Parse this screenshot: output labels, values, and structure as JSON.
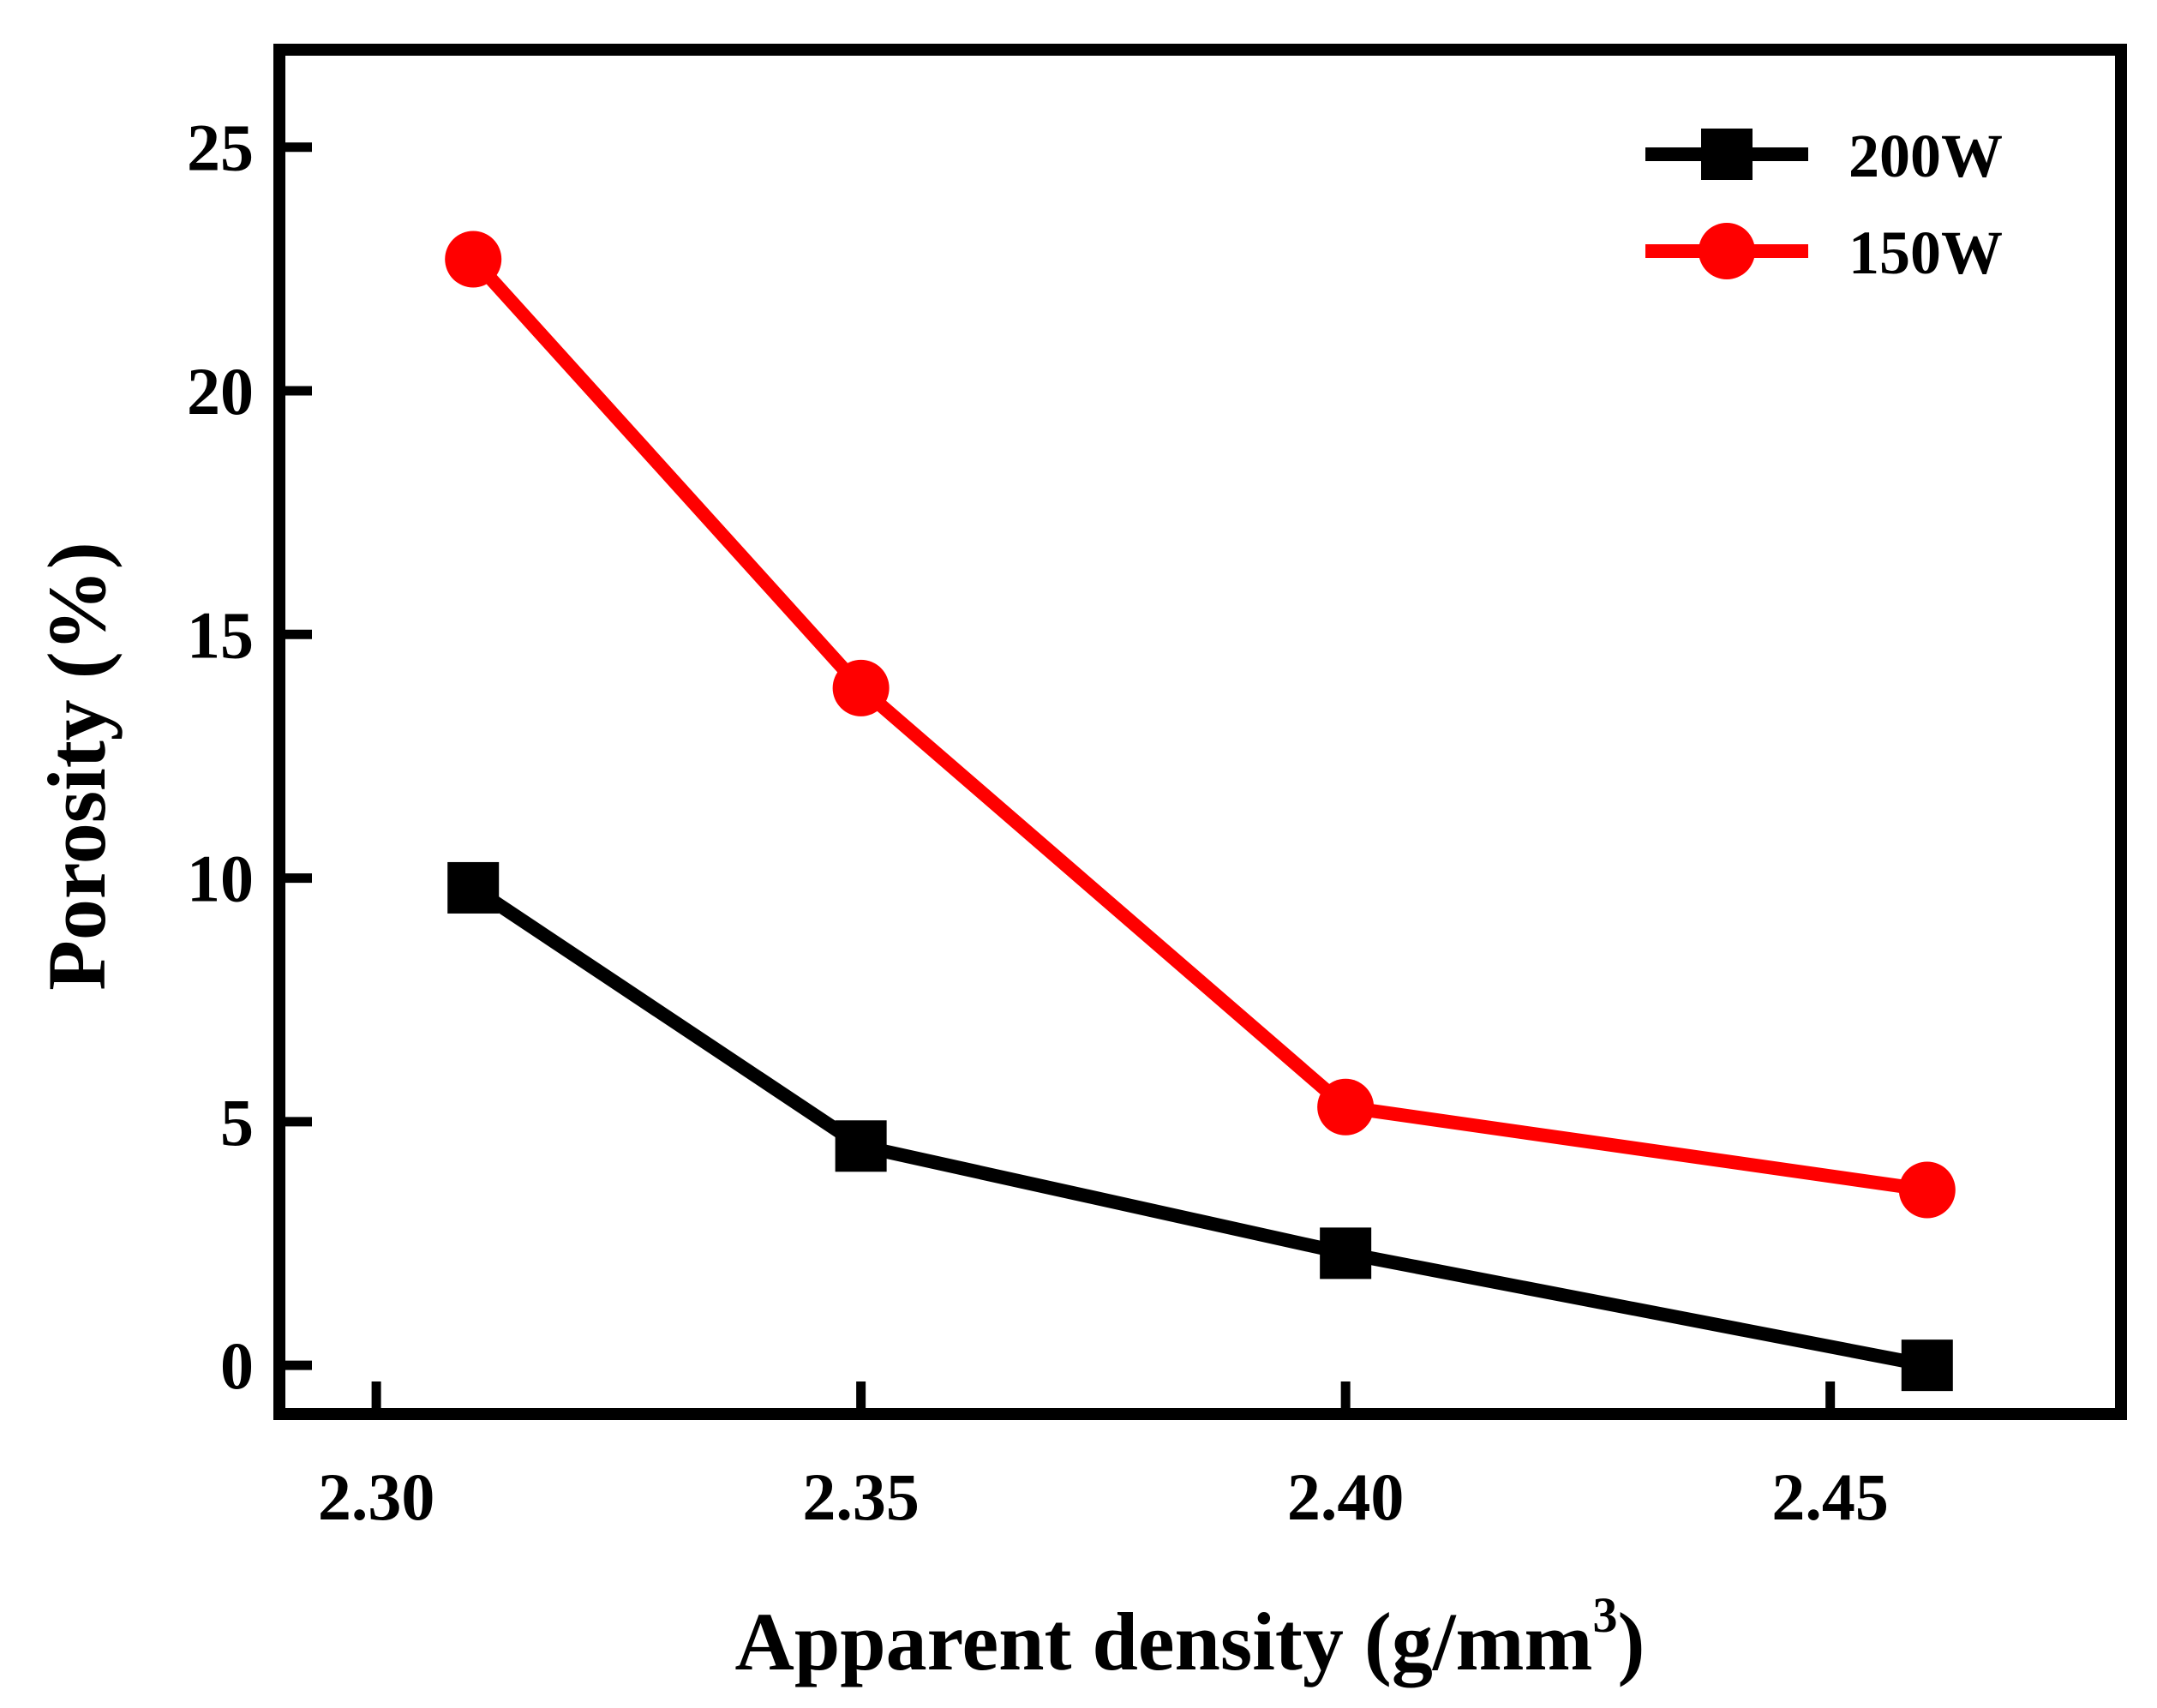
{
  "chart_data": {
    "type": "line",
    "title": "",
    "xlabel": "Apparent density (g/mm",
    "xlabel_superscript": "3",
    "xlabel_close": ")",
    "ylabel": "Porosity (%)",
    "xlim": [
      2.29,
      2.48
    ],
    "ylim": [
      -1,
      27
    ],
    "xticks": [
      2.3,
      2.35,
      2.4,
      2.45
    ],
    "xtick_labels": [
      "2.30",
      "2.35",
      "2.40",
      "2.45"
    ],
    "yticks": [
      0,
      5,
      10,
      15,
      20,
      25
    ],
    "ytick_labels": [
      "0",
      "5",
      "10",
      "15",
      "20",
      "25"
    ],
    "grid": false,
    "legend_position": "top-right",
    "series": [
      {
        "name": "200W",
        "color": "#000000",
        "marker": "square",
        "x": [
          2.31,
          2.35,
          2.4,
          2.46
        ],
        "values": [
          9.8,
          4.5,
          2.3,
          0.0
        ]
      },
      {
        "name": "150W",
        "color": "#ff0000",
        "marker": "circle",
        "x": [
          2.31,
          2.35,
          2.4,
          2.46
        ],
        "values": [
          22.7,
          13.9,
          5.3,
          3.6
        ]
      }
    ]
  }
}
